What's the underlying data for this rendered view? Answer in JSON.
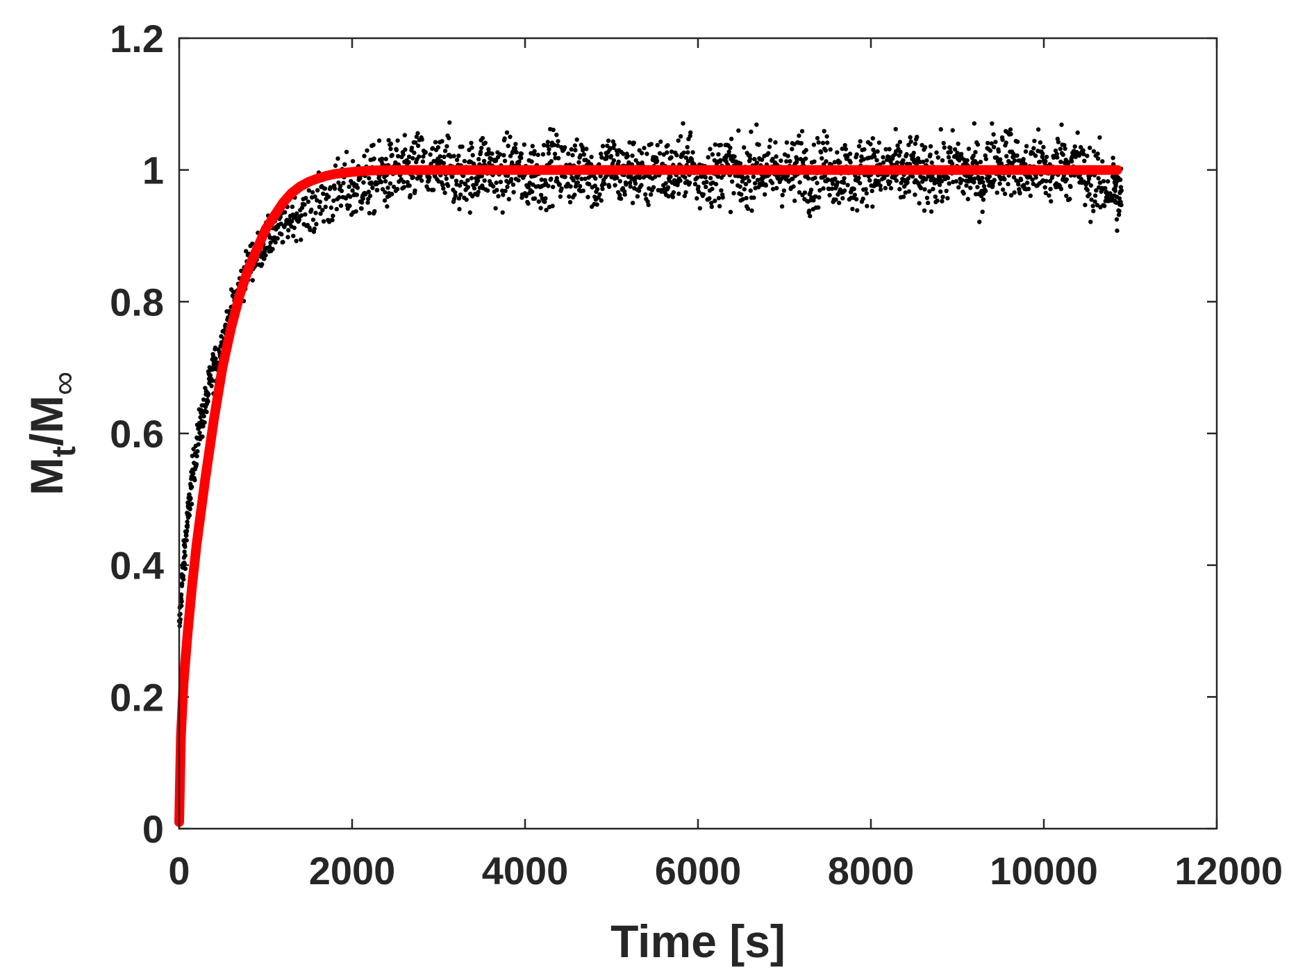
{
  "chart_data": {
    "type": "scatter",
    "title": "",
    "xlabel": "Time [s]",
    "ylabel": {
      "main": "M",
      "sub1": "t",
      "slash": "/M",
      "sub2": "∞"
    },
    "xlim": [
      0,
      12000
    ],
    "ylim": [
      0,
      1.2
    ],
    "x_ticks": [
      0,
      2000,
      4000,
      6000,
      8000,
      10000,
      12000
    ],
    "x_tick_labels": [
      "0",
      "2000",
      "4000",
      "6000",
      "8000",
      "10000",
      "12000"
    ],
    "y_ticks": [
      0,
      0.2,
      0.4,
      0.6,
      0.8,
      1.0,
      1.2
    ],
    "y_tick_labels": [
      "0",
      "0.2",
      "0.4",
      "0.6",
      "0.8",
      "1",
      "1.2"
    ],
    "grid": false,
    "box": true,
    "series": [
      {
        "kind": "scatter",
        "color": "#000000",
        "x": [
          0,
          25,
          50,
          75,
          100,
          130,
          160,
          200,
          240,
          280,
          320,
          360,
          400,
          450,
          500,
          550,
          600,
          650,
          700,
          760,
          820,
          880,
          940,
          1000,
          1080,
          1160,
          1240,
          1320,
          1400,
          1500,
          1600,
          1700,
          1800,
          1900,
          2000,
          2100,
          2200,
          2300,
          2400,
          2500,
          2600,
          2700,
          2800,
          2900,
          3000,
          3100,
          3200,
          3300,
          3400,
          3500,
          3600,
          3700,
          3800,
          3900,
          4000,
          4100,
          4200,
          4300,
          4400,
          4500,
          4600,
          4700,
          4800,
          4900,
          5000,
          5100,
          5200,
          5300,
          5400,
          5500,
          5600,
          5700,
          5800,
          5900,
          6000,
          6100,
          6200,
          6300,
          6400,
          6500,
          6600,
          6700,
          6800,
          6900,
          7000,
          7100,
          7200,
          7300,
          7400,
          7500,
          7600,
          7700,
          7800,
          7900,
          8000,
          8100,
          8200,
          8300,
          8400,
          8500,
          8600,
          8700,
          8800,
          8900,
          9000,
          9100,
          9200,
          9300,
          9400,
          9500,
          9600,
          9700,
          9800,
          9900,
          10000,
          10100,
          10200,
          10300,
          10400,
          10500,
          10600,
          10700,
          10800,
          10850
        ],
        "y": [
          0.3,
          0.36,
          0.4,
          0.44,
          0.47,
          0.51,
          0.54,
          0.58,
          0.61,
          0.63,
          0.65,
          0.68,
          0.7,
          0.71,
          0.74,
          0.76,
          0.78,
          0.8,
          0.82,
          0.84,
          0.86,
          0.87,
          0.88,
          0.89,
          0.9,
          0.91,
          0.92,
          0.93,
          0.93,
          0.94,
          0.95,
          0.96,
          0.96,
          0.97,
          0.97,
          0.98,
          0.98,
          0.99,
          0.99,
          1.0,
          0.99,
          1.0,
          1.01,
          0.99,
          1.0,
          1.02,
          0.98,
          1.0,
          0.99,
          1.01,
          1.0,
          0.99,
          1.0,
          1.01,
          0.98,
          1.0,
          0.99,
          1.01,
          1.0,
          1.0,
          0.99,
          1.02,
          0.98,
          1.0,
          1.01,
          0.99,
          1.0,
          1.0,
          0.98,
          1.01,
          1.0,
          0.99,
          1.0,
          1.02,
          0.98,
          1.0,
          0.99,
          1.01,
          1.0,
          0.98,
          1.0,
          1.01,
          0.99,
          1.0,
          1.0,
          0.99,
          1.02,
          0.98,
          1.0,
          1.01,
          0.99,
          1.0,
          0.98,
          1.0,
          1.01,
          0.99,
          1.0,
          1.0,
          0.99,
          1.01,
          0.98,
          1.0,
          0.99,
          1.0,
          1.01,
          0.99,
          1.0,
          0.98,
          1.02,
          1.01,
          1.02,
          1.0,
          0.99,
          1.01,
          1.0,
          0.99,
          1.02,
          1.0,
          1.01,
          0.98,
          0.99,
          0.97,
          0.98,
          0.96
        ],
        "noise_band": 0.025
      },
      {
        "kind": "line",
        "color": "#ff0000",
        "model": "fit",
        "x": [
          0,
          20,
          50,
          100,
          150,
          200,
          300,
          400,
          500,
          600,
          700,
          800,
          900,
          1000,
          1100,
          1200,
          1300,
          1400,
          1500,
          1600,
          1700,
          1800,
          2000,
          2200,
          2400,
          2700,
          3000,
          4000,
          5000,
          6000,
          7000,
          8000,
          9000,
          10000,
          10850
        ],
        "y": [
          0.01,
          0.14,
          0.22,
          0.3,
          0.37,
          0.43,
          0.53,
          0.62,
          0.7,
          0.76,
          0.81,
          0.85,
          0.88,
          0.91,
          0.93,
          0.95,
          0.965,
          0.975,
          0.982,
          0.987,
          0.991,
          0.994,
          0.997,
          0.999,
          1.0,
          1.0,
          1.0,
          1.0,
          1.0,
          1.0,
          1.0,
          1.0,
          1.0,
          1.0,
          1.0
        ]
      }
    ]
  }
}
